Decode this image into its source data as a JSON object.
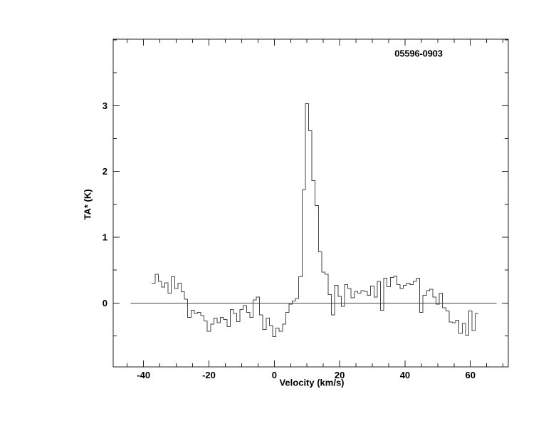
{
  "page": {
    "background": "#ffffff"
  },
  "chart_data": {
    "type": "histogram-line",
    "title": "05596-0903",
    "xlabel": "Velocity (km/s)",
    "ylabel": "TA* (K)",
    "xlim": [
      -49.3,
      71.6
    ],
    "ylim": [
      -0.97,
      4.01
    ],
    "x_major_ticks": [
      -40,
      -20,
      0,
      20,
      40,
      60
    ],
    "x_major_tick_labels": [
      "-40",
      "-20",
      "0",
      "20",
      "40",
      "60"
    ],
    "x_minor_step": 5,
    "y_major_ticks": [
      0,
      1,
      2,
      3
    ],
    "y_major_tick_labels": [
      "0",
      "1",
      "2",
      "3"
    ],
    "y_minor_step": 0.5,
    "grid": "off",
    "legend": "none",
    "baseline": {
      "level": 0,
      "x_from": -44,
      "x_to": 68
    },
    "line_color": "#454545",
    "axis_color": "#222222",
    "text_color": "#000000",
    "x_start": -37,
    "bin_width": 1,
    "values": [
      0.3,
      0.44,
      0.33,
      0.24,
      0.31,
      0.15,
      0.4,
      0.22,
      0.3,
      0.17,
      0.06,
      -0.22,
      -0.11,
      -0.16,
      -0.14,
      -0.19,
      -0.27,
      -0.43,
      -0.32,
      -0.23,
      -0.3,
      -0.22,
      -0.25,
      -0.36,
      -0.1,
      -0.16,
      -0.28,
      -0.1,
      -0.04,
      -0.14,
      -0.22,
      0.05,
      0.09,
      -0.18,
      -0.4,
      -0.23,
      -0.34,
      -0.51,
      -0.38,
      -0.43,
      -0.32,
      -0.14,
      -0.02,
      0.03,
      0.07,
      0.4,
      1.72,
      3.03,
      2.62,
      1.86,
      1.48,
      0.78,
      0.47,
      0.44,
      0.13,
      -0.18,
      0.27,
      0.1,
      -0.05,
      0.28,
      0.22,
      0.08,
      0.18,
      0.15,
      0.19,
      0.18,
      0.12,
      0.26,
      0.09,
      0.33,
      -0.11,
      0.38,
      0.25,
      0.39,
      0.41,
      0.28,
      0.22,
      0.27,
      0.3,
      0.28,
      0.33,
      0.38,
      -0.14,
      0.12,
      0.19,
      0.21,
      0.09,
      -0.02,
      0.15,
      -0.07,
      -0.12,
      -0.29,
      -0.3,
      -0.26,
      -0.46,
      -0.31,
      -0.49,
      -0.12,
      -0.42,
      -0.16
    ],
    "peak": {
      "velocity_km_s": 10,
      "ta_k": 3.03
    }
  }
}
